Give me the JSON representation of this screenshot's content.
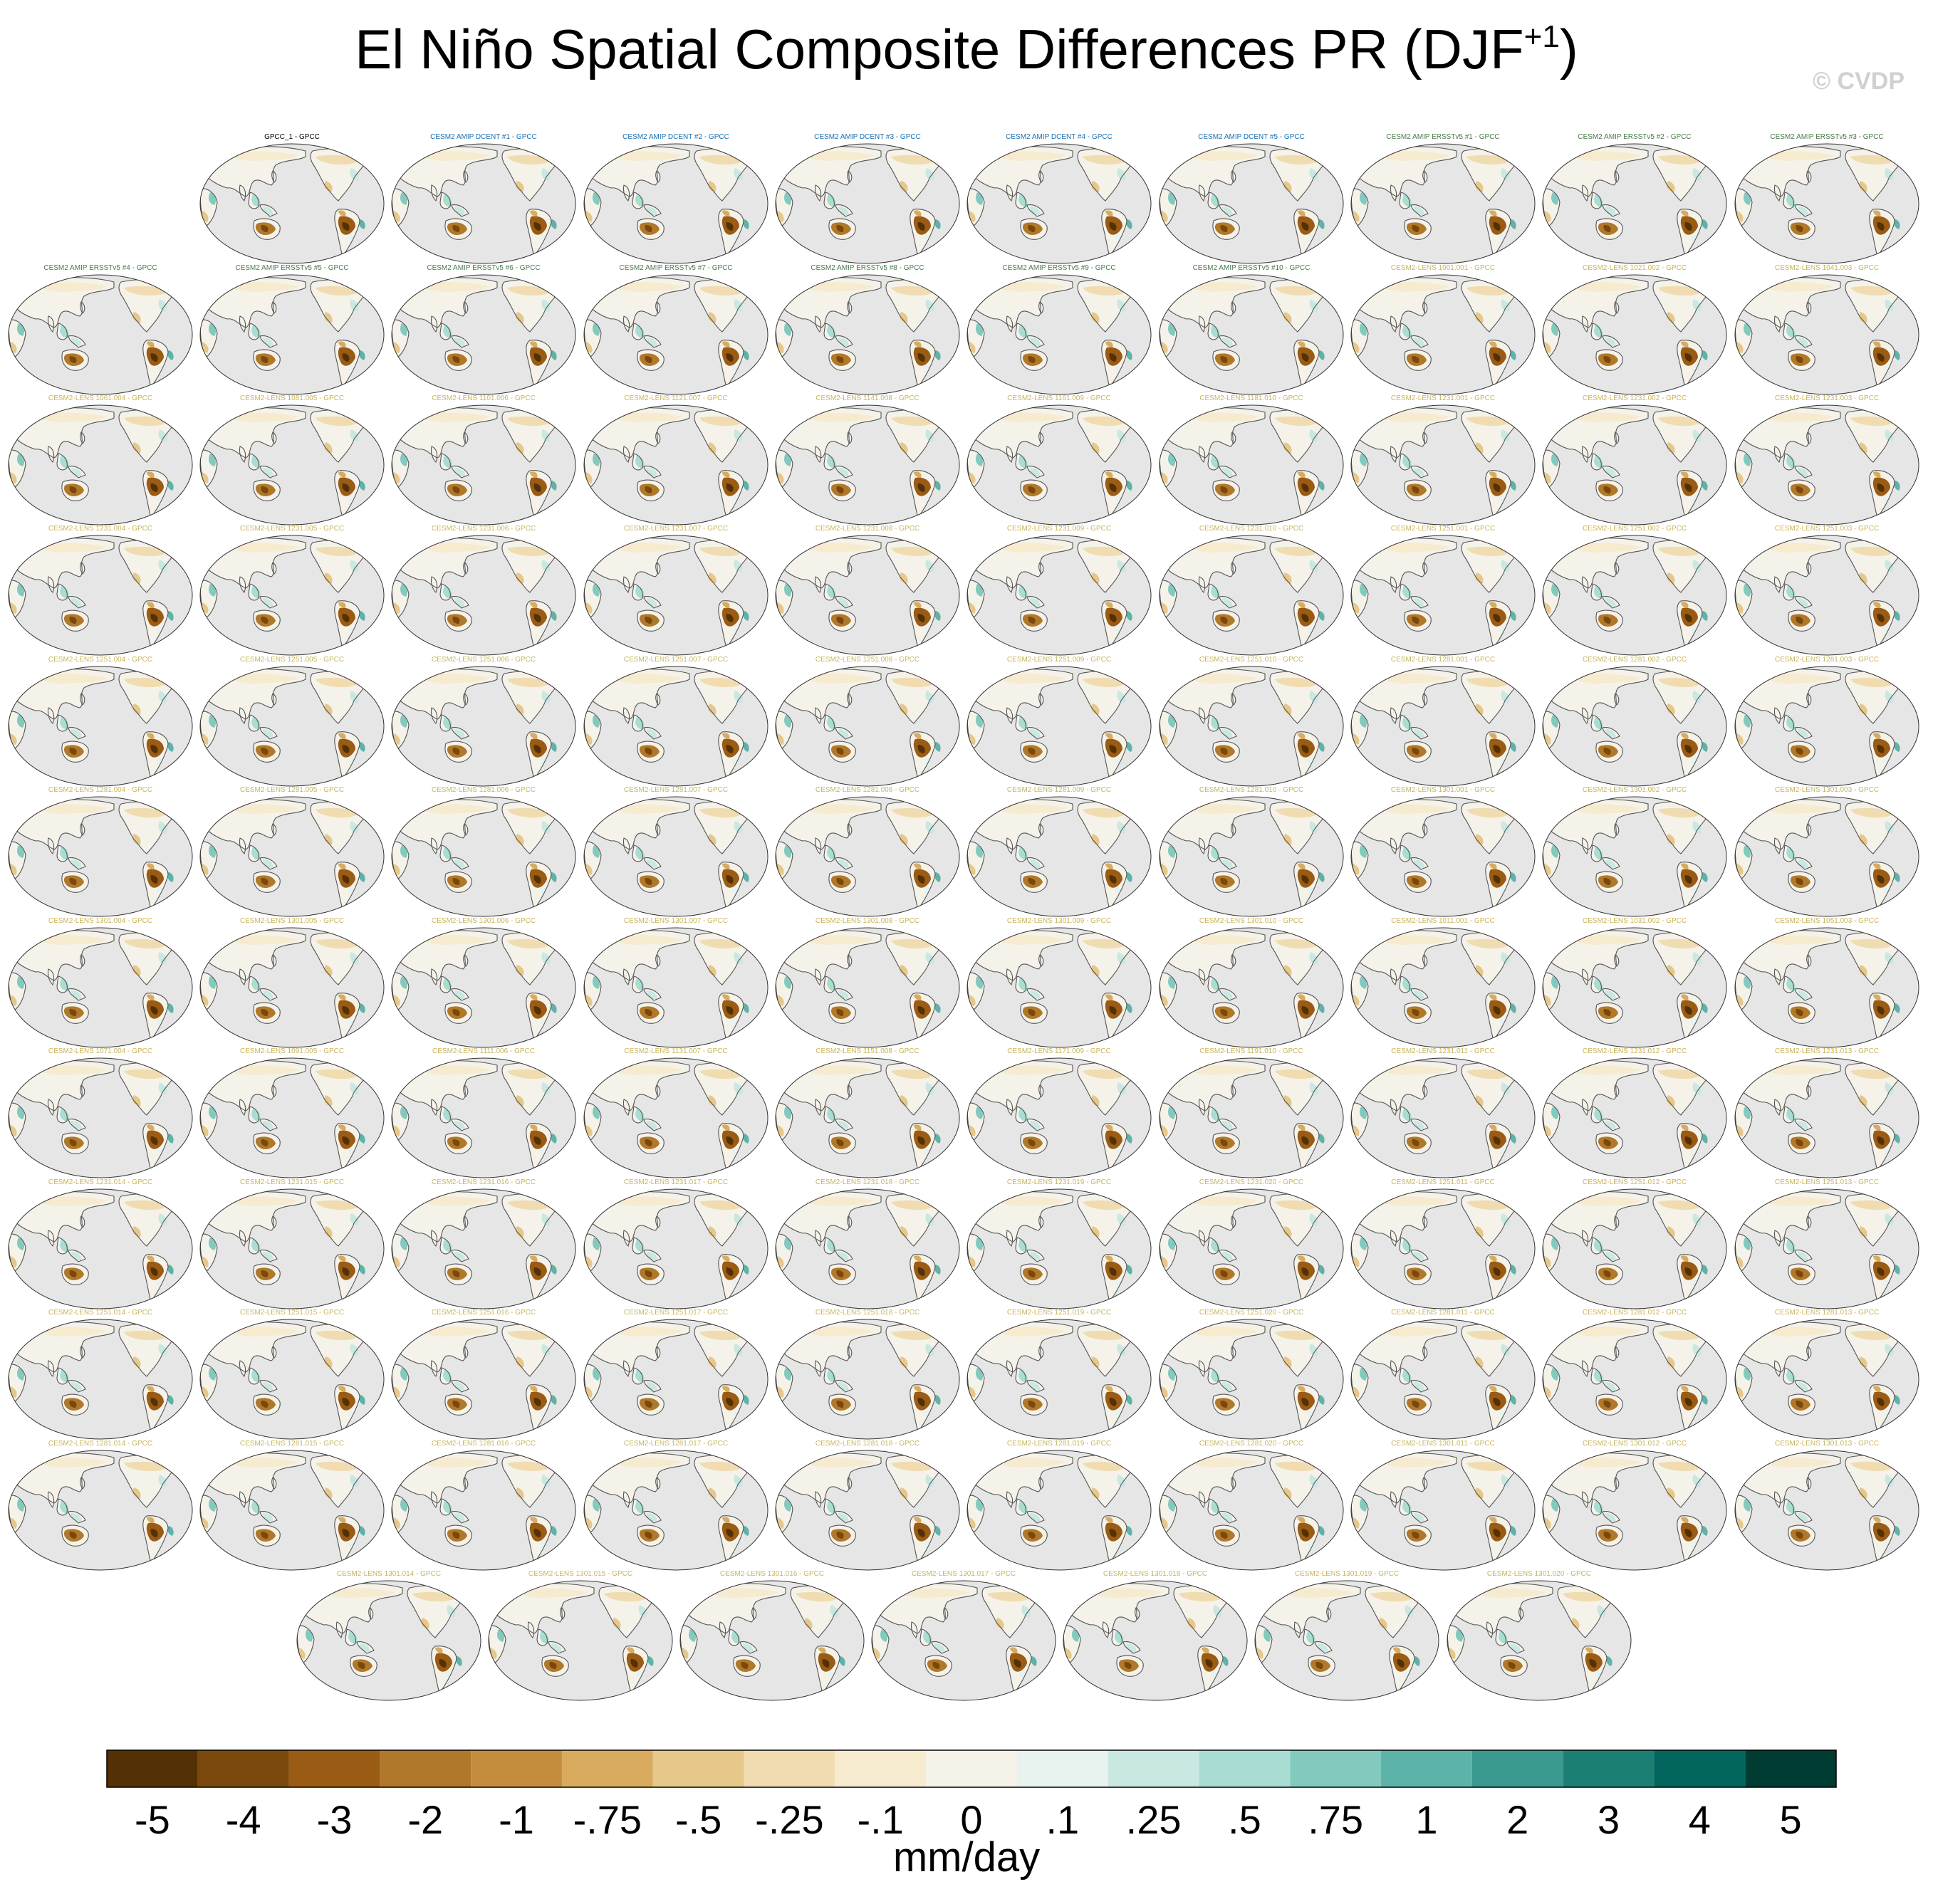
{
  "figure": {
    "title_main": "El Niño Spatial Composite Differences PR (DJF",
    "title_sup": "+1",
    "title_close": ")",
    "watermark": "© CVDP",
    "colors": {
      "obs_title": "#000000",
      "amip_dcent_title": "#1a6fb0",
      "amip_ersst_title": "#4a7a4a",
      "lens_title": "#c8b45a",
      "ocean": "#e6e6e6",
      "coast": "#555555"
    }
  },
  "panels": {
    "rows": [
      [
        "GPCC_1 - GPCC",
        "CESM2 AMIP DCENT #1 - GPCC",
        "CESM2 AMIP DCENT #2 - GPCC",
        "CESM2 AMIP DCENT #3 - GPCC",
        "CESM2 AMIP DCENT #4 - GPCC",
        "CESM2 AMIP DCENT #5 - GPCC",
        "CESM2 AMIP ERSSTv5 #1 - GPCC",
        "CESM2 AMIP ERSSTv5 #2 - GPCC",
        "CESM2 AMIP ERSSTv5 #3 - GPCC"
      ],
      [
        "CESM2 AMIP ERSSTv5 #4 - GPCC",
        "CESM2 AMIP ERSSTv5 #5 - GPCC",
        "CESM2 AMIP ERSSTv5 #6 - GPCC",
        "CESM2 AMIP ERSSTv5 #7 - GPCC",
        "CESM2 AMIP ERSSTv5 #8 - GPCC",
        "CESM2 AMIP ERSSTv5 #9 - GPCC",
        "CESM2 AMIP ERSSTv5 #10 - GPCC",
        "CESM2-LENS 1001.001 - GPCC",
        "CESM2-LENS 1021.002 - GPCC",
        "CESM2-LENS 1041.003 - GPCC"
      ],
      [
        "CESM2-LENS 1061.004 - GPCC",
        "CESM2-LENS 1081.005 - GPCC",
        "CESM2-LENS 1101.006 - GPCC",
        "CESM2-LENS 1121.007 - GPCC",
        "CESM2-LENS 1141.008 - GPCC",
        "CESM2-LENS 1161.009 - GPCC",
        "CESM2-LENS 1181.010 - GPCC",
        "CESM2-LENS 1231.001 - GPCC",
        "CESM2-LENS 1231.002 - GPCC",
        "CESM2-LENS 1231.003 - GPCC"
      ],
      [
        "CESM2-LENS 1231.004 - GPCC",
        "CESM2-LENS 1231.005 - GPCC",
        "CESM2-LENS 1231.006 - GPCC",
        "CESM2-LENS 1231.007 - GPCC",
        "CESM2-LENS 1231.008 - GPCC",
        "CESM2-LENS 1231.009 - GPCC",
        "CESM2-LENS 1231.010 - GPCC",
        "CESM2-LENS 1251.001 - GPCC",
        "CESM2-LENS 1251.002 - GPCC",
        "CESM2-LENS 1251.003 - GPCC"
      ],
      [
        "CESM2-LENS 1251.004 - GPCC",
        "CESM2-LENS 1251.005 - GPCC",
        "CESM2-LENS 1251.006 - GPCC",
        "CESM2-LENS 1251.007 - GPCC",
        "CESM2-LENS 1251.008 - GPCC",
        "CESM2-LENS 1251.009 - GPCC",
        "CESM2-LENS 1251.010 - GPCC",
        "CESM2-LENS 1281.001 - GPCC",
        "CESM2-LENS 1281.002 - GPCC",
        "CESM2-LENS 1281.003 - GPCC"
      ],
      [
        "CESM2-LENS 1281.004 - GPCC",
        "CESM2-LENS 1281.005 - GPCC",
        "CESM2-LENS 1281.006 - GPCC",
        "CESM2-LENS 1281.007 - GPCC",
        "CESM2-LENS 1281.008 - GPCC",
        "CESM2-LENS 1281.009 - GPCC",
        "CESM2-LENS 1281.010 - GPCC",
        "CESM2-LENS 1301.001 - GPCC",
        "CESM2-LENS 1301.002 - GPCC",
        "CESM2-LENS 1301.003 - GPCC"
      ],
      [
        "CESM2-LENS 1301.004 - GPCC",
        "CESM2-LENS 1301.005 - GPCC",
        "CESM2-LENS 1301.006 - GPCC",
        "CESM2-LENS 1301.007 - GPCC",
        "CESM2-LENS 1301.008 - GPCC",
        "CESM2-LENS 1301.009 - GPCC",
        "CESM2-LENS 1301.010 - GPCC",
        "CESM2-LENS 1011.001 - GPCC",
        "CESM2-LENS 1031.002 - GPCC",
        "CESM2-LENS 1051.003 - GPCC"
      ],
      [
        "CESM2-LENS 1071.004 - GPCC",
        "CESM2-LENS 1091.005 - GPCC",
        "CESM2-LENS 1111.006 - GPCC",
        "CESM2-LENS 1131.007 - GPCC",
        "CESM2-LENS 1151.008 - GPCC",
        "CESM2-LENS 1171.009 - GPCC",
        "CESM2-LENS 1191.010 - GPCC",
        "CESM2-LENS 1231.011 - GPCC",
        "CESM2-LENS 1231.012 - GPCC",
        "CESM2-LENS 1231.013 - GPCC"
      ],
      [
        "CESM2-LENS 1231.014 - GPCC",
        "CESM2-LENS 1231.015 - GPCC",
        "CESM2-LENS 1231.016 - GPCC",
        "CESM2-LENS 1231.017 - GPCC",
        "CESM2-LENS 1231.018 - GPCC",
        "CESM2-LENS 1231.019 - GPCC",
        "CESM2-LENS 1231.020 - GPCC",
        "CESM2-LENS 1251.011 - GPCC",
        "CESM2-LENS 1251.012 - GPCC",
        "CESM2-LENS 1251.013 - GPCC"
      ],
      [
        "CESM2-LENS 1251.014 - GPCC",
        "CESM2-LENS 1251.015 - GPCC",
        "CESM2-LENS 1251.016 - GPCC",
        "CESM2-LENS 1251.017 - GPCC",
        "CESM2-LENS 1251.018 - GPCC",
        "CESM2-LENS 1251.019 - GPCC",
        "CESM2-LENS 1251.020 - GPCC",
        "CESM2-LENS 1281.011 - GPCC",
        "CESM2-LENS 1281.012 - GPCC",
        "CESM2-LENS 1281.013 - GPCC"
      ],
      [
        "CESM2-LENS 1281.014 - GPCC",
        "CESM2-LENS 1281.015 - GPCC",
        "CESM2-LENS 1281.016 - GPCC",
        "CESM2-LENS 1281.017 - GPCC",
        "CESM2-LENS 1281.018 - GPCC",
        "CESM2-LENS 1281.019 - GPCC",
        "CESM2-LENS 1281.020 - GPCC",
        "CESM2-LENS 1301.011 - GPCC",
        "CESM2-LENS 1301.012 - GPCC",
        "CESM2-LENS 1301.013 - GPCC"
      ],
      [
        "CESM2-LENS 1301.014 - GPCC",
        "CESM2-LENS 1301.015 - GPCC",
        "CESM2-LENS 1301.016 - GPCC",
        "CESM2-LENS 1301.017 - GPCC",
        "CESM2-LENS 1301.018 - GPCC",
        "CESM2-LENS 1301.019 - GPCC",
        "CESM2-LENS 1301.020 - GPCC"
      ]
    ]
  },
  "colorbar": {
    "label": "mm/day",
    "tick_labels": [
      "-5",
      "-4",
      "-3",
      "-2",
      "-1",
      "-.75",
      "-.5",
      "-.25",
      "-.1",
      "0",
      ".1",
      ".25",
      ".5",
      ".75",
      "1",
      "2",
      "3",
      "4",
      "5"
    ],
    "colors": [
      "#543005",
      "#7a480b",
      "#9a5b14",
      "#b0782a",
      "#c48c3c",
      "#d8ab5f",
      "#e5c88a",
      "#f0dcb0",
      "#f6ebcf",
      "#f5f2ea",
      "#e8f2ef",
      "#c9e8e2",
      "#a9ddd4",
      "#82cabe",
      "#5db3a7",
      "#3a9a8f",
      "#1c7f74",
      "#02665e",
      "#013c33"
    ]
  }
}
